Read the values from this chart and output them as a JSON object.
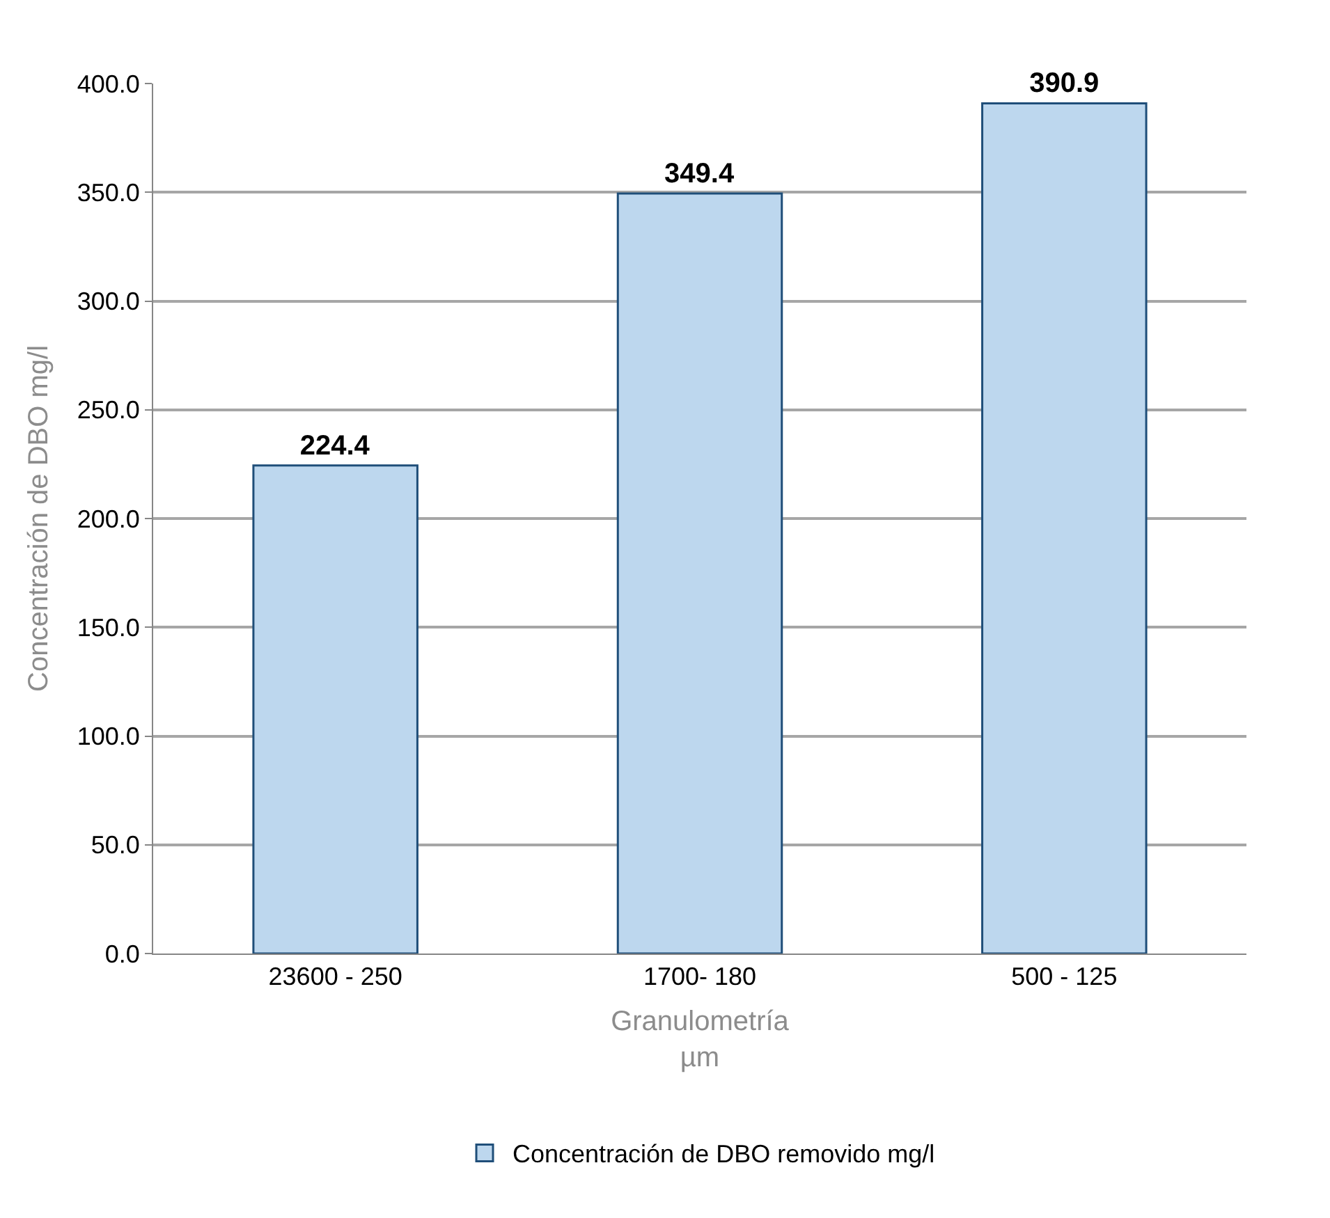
{
  "chart_data": {
    "type": "bar",
    "categories": [
      "23600 - 250",
      "1700- 180",
      "500 - 125"
    ],
    "series": [
      {
        "name": "Concentración de DBO removido mg/l",
        "color": "#bdd7ee",
        "values": [
          224.4,
          349.4,
          390.9
        ]
      }
    ],
    "xlabel": "Granulometría\nµm",
    "ylabel": "Concentración de DBO mg/l",
    "ylim": [
      0,
      400
    ],
    "yticks": [
      {
        "value": 0,
        "label": "0.0"
      },
      {
        "value": 50,
        "label": "50.0"
      },
      {
        "value": 100,
        "label": "100.0"
      },
      {
        "value": 150,
        "label": "150.0"
      },
      {
        "value": 200,
        "label": "200.0"
      },
      {
        "value": 250,
        "label": "250.0"
      },
      {
        "value": 300,
        "label": "300.0"
      },
      {
        "value": 350,
        "label": "350.0"
      },
      {
        "value": 400,
        "label": "400.0"
      }
    ],
    "grid": "y",
    "legend": "bottom",
    "data_labels": true
  }
}
